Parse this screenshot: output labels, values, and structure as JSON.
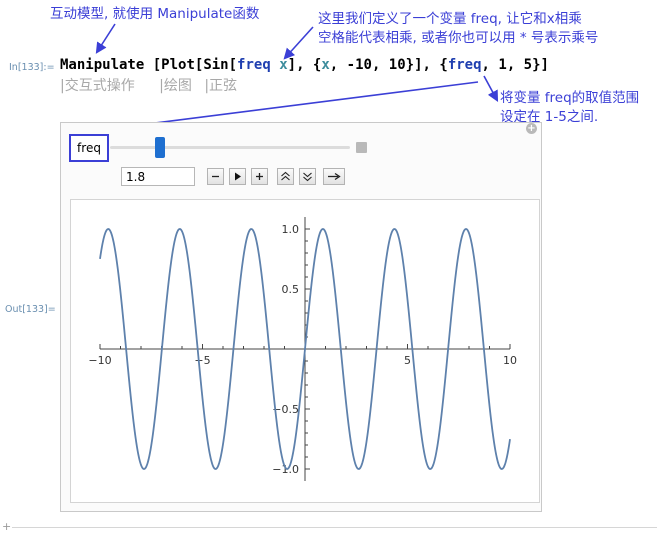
{
  "annotations": {
    "top_left": "互动模型, 就使用 Manipulate函数",
    "top_right_line1": "这里我们定义了一个变量 freq, 让它和x相乘",
    "top_right_line2": "空格能代表相乘, 或者你也可以用 * 号表示乘号",
    "range_line1": "将变量 freq的取值范围",
    "range_line2": "设定在 1-5之间."
  },
  "cells": {
    "input_label": "In[133]:=",
    "output_label": "Out[133]="
  },
  "code": {
    "fn": "Manipulate",
    "p1": " [",
    "plot": "Plot",
    "p2": "[",
    "sin": "Sin",
    "p3": "[",
    "freq1": "freq",
    "sp": " ",
    "x1": "x",
    "p4": "], {",
    "x2": "x",
    "p5": ", -10, 10}], {",
    "freq2": "freq",
    "p6": ", 1, 5}]"
  },
  "suggestion_bar": {
    "items": [
      "|交互式操作",
      "|绘图",
      "|正弦"
    ]
  },
  "controls": {
    "variable_label": "freq",
    "value": "1.8",
    "range_min": 1,
    "range_max": 5,
    "current": 1.8
  },
  "icons": {
    "close_control": "minus-square-icon",
    "add_control": "plus-circle-icon",
    "decrement": "minus-icon",
    "play": "play-icon",
    "increment": "plus-icon",
    "faster": "double-chevron-up-icon",
    "slower": "double-chevron-down-icon",
    "direction": "arrow-right-icon"
  },
  "chart_data": {
    "type": "line",
    "function": "Sin[1.8 x]",
    "x_range": [
      -10,
      10
    ],
    "y_range": [
      -1,
      1
    ],
    "x_ticks": [
      "-10",
      "-5",
      "5",
      "10"
    ],
    "y_ticks": [
      "1.0",
      "0.5",
      "-0.5",
      "-1.0"
    ],
    "series_color": "#5e81ac"
  },
  "colors": {
    "annotation": "#3b3fd6",
    "slider_thumb": "#1e6fd0"
  }
}
